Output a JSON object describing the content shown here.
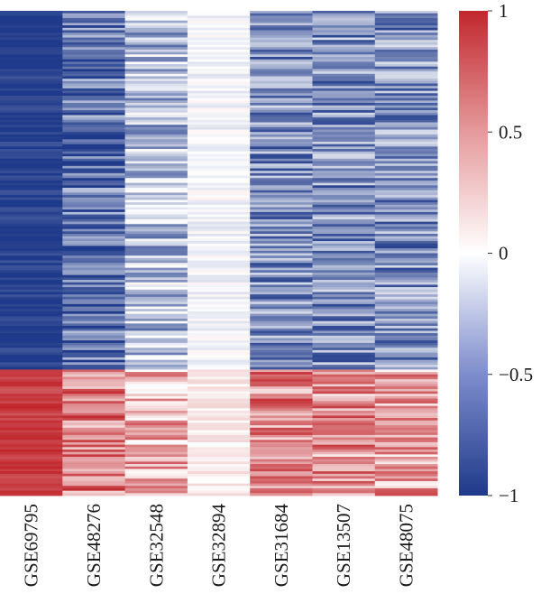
{
  "chart_data": {
    "type": "heatmap",
    "title": "",
    "xlabel": "",
    "ylabel": "",
    "columns": [
      "GSE69795",
      "GSE48276",
      "GSE32548",
      "GSE32894",
      "GSE31684",
      "GSE13507",
      "GSE48075"
    ],
    "n_rows": 200,
    "row_groups": [
      {
        "rows": 148,
        "mean_values": [
          -0.98,
          -0.7,
          -0.35,
          -0.05,
          -0.55,
          -0.55,
          -0.55
        ]
      },
      {
        "rows": 52,
        "mean_values": [
          0.9,
          0.6,
          0.35,
          0.1,
          0.55,
          0.5,
          0.45
        ]
      }
    ],
    "colorbar": {
      "min": -1,
      "max": 1,
      "ticks": [
        1,
        0.5,
        0,
        -0.5,
        -1
      ],
      "tick_labels": [
        "1",
        "0.5",
        "0",
        "−0.5",
        "−1"
      ],
      "colors": [
        "#1f3a8a",
        "#ffffff",
        "#c1272d"
      ]
    }
  }
}
